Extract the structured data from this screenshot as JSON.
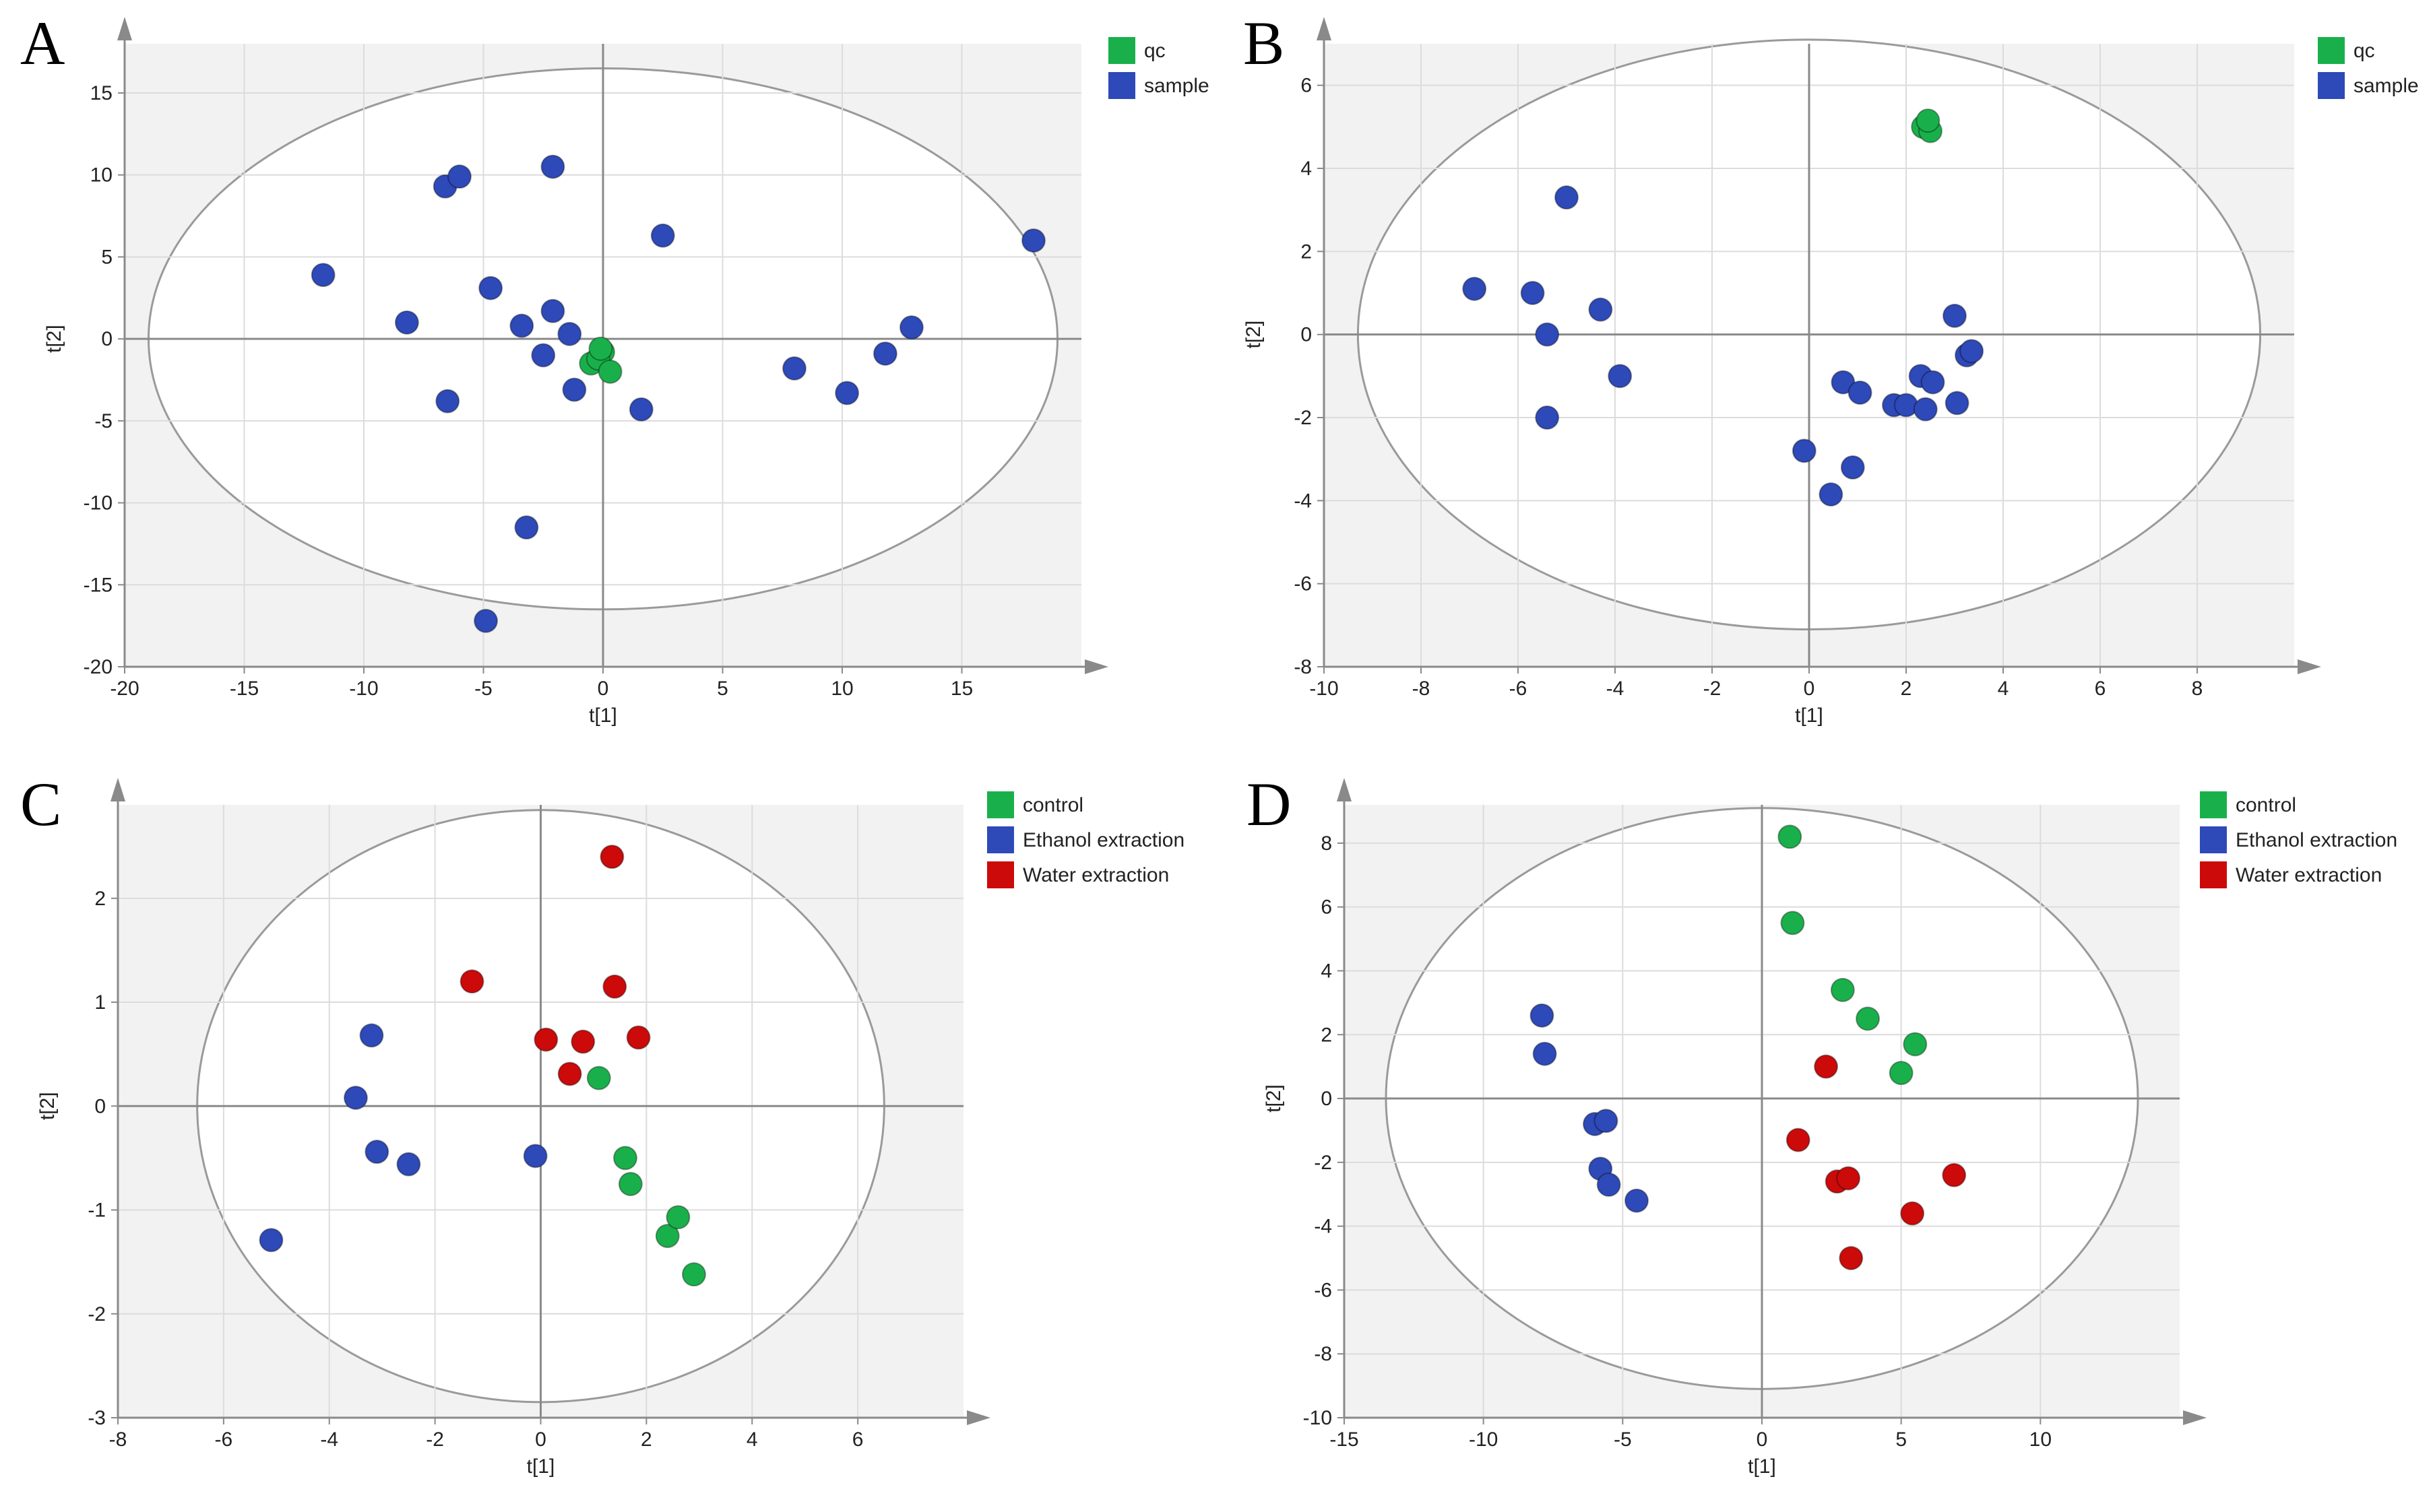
{
  "colors": {
    "plot_bg": "#f2f2f2",
    "ellipse_fill": "#ffffff",
    "ellipse_stroke": "#9a9a9a",
    "grid": "#dcdcdc",
    "axis": "#8a8a8a",
    "green": "#19b04b",
    "blue": "#2e49b8",
    "red": "#cc0a0a"
  },
  "chart_data": [
    {
      "panel": "A",
      "type": "scatter",
      "xlabel": "t[1]",
      "ylabel": "t[2]",
      "xlim": [
        -20,
        20
      ],
      "ylim": [
        -20,
        18
      ],
      "xticks": [
        -20,
        -15,
        -10,
        -5,
        0,
        5,
        10,
        15
      ],
      "yticks": [
        -20,
        -15,
        -10,
        -5,
        0,
        5,
        10,
        15
      ],
      "ellipse": {
        "rx": 19,
        "ry": 16.5
      },
      "grid": true,
      "legend_position": "top-right",
      "series": [
        {
          "name": "qc",
          "color": "green",
          "points": [
            [
              0,
              -0.8
            ],
            [
              -0.5,
              -1.5
            ],
            [
              -0.2,
              -1.2
            ],
            [
              0.3,
              -2.0
            ],
            [
              -0.1,
              -0.6
            ]
          ]
        },
        {
          "name": "sample",
          "color": "blue",
          "points": [
            [
              -11.7,
              3.9
            ],
            [
              -8.2,
              1.0
            ],
            [
              -6.6,
              9.3
            ],
            [
              -6.0,
              9.9
            ],
            [
              -6.5,
              -3.8
            ],
            [
              -4.7,
              3.1
            ],
            [
              -3.4,
              0.8
            ],
            [
              -2.5,
              -1.0
            ],
            [
              -2.1,
              1.7
            ],
            [
              -2.1,
              10.5
            ],
            [
              -1.4,
              0.3
            ],
            [
              -1.2,
              -3.1
            ],
            [
              -3.2,
              -11.5
            ],
            [
              -4.9,
              -17.2
            ],
            [
              1.6,
              -4.3
            ],
            [
              2.5,
              6.3
            ],
            [
              8.0,
              -1.8
            ],
            [
              10.2,
              -3.3
            ],
            [
              11.8,
              -0.9
            ],
            [
              12.9,
              0.7
            ],
            [
              18.0,
              6.0
            ]
          ]
        }
      ]
    },
    {
      "panel": "B",
      "type": "scatter",
      "xlabel": "t[1]",
      "ylabel": "t[2]",
      "xlim": [
        -10,
        10
      ],
      "ylim": [
        -8,
        7
      ],
      "xticks": [
        -10,
        -8,
        -6,
        -4,
        -2,
        0,
        2,
        4,
        6,
        8
      ],
      "yticks": [
        -8,
        -6,
        -4,
        -2,
        0,
        2,
        4,
        6
      ],
      "ellipse": {
        "rx": 9.3,
        "ry": 7.1
      },
      "grid": true,
      "legend_position": "top-right",
      "series": [
        {
          "name": "qc",
          "color": "green",
          "points": [
            [
              2.35,
              5.0
            ],
            [
              2.5,
              4.9
            ],
            [
              2.45,
              5.15
            ]
          ]
        },
        {
          "name": "sample",
          "color": "blue",
          "points": [
            [
              -6.9,
              1.1
            ],
            [
              -5.7,
              1.0
            ],
            [
              -5.4,
              0.0
            ],
            [
              -5.4,
              -2.0
            ],
            [
              -5.0,
              3.3
            ],
            [
              -4.3,
              0.6
            ],
            [
              -3.9,
              -1.0
            ],
            [
              -0.1,
              -2.8
            ],
            [
              0.45,
              -3.85
            ],
            [
              0.7,
              -1.15
            ],
            [
              0.9,
              -3.2
            ],
            [
              1.05,
              -1.4
            ],
            [
              1.75,
              -1.7
            ],
            [
              2.0,
              -1.7
            ],
            [
              2.3,
              -1.0
            ],
            [
              2.4,
              -1.8
            ],
            [
              2.55,
              -1.15
            ],
            [
              3.0,
              0.45
            ],
            [
              3.05,
              -1.65
            ],
            [
              3.25,
              -0.5
            ],
            [
              3.35,
              -0.4
            ]
          ]
        }
      ]
    },
    {
      "panel": "C",
      "type": "scatter",
      "xlabel": "t[1]",
      "ylabel": "t[2]",
      "xlim": [
        -8,
        8
      ],
      "ylim": [
        -3,
        2.9
      ],
      "xticks": [
        -8,
        -6,
        -4,
        -2,
        0,
        2,
        4,
        6
      ],
      "yticks": [
        -3,
        -2,
        -1,
        0,
        1,
        2
      ],
      "ellipse": {
        "rx": 6.5,
        "ry": 2.85
      },
      "grid": true,
      "legend_position": "top-right",
      "series": [
        {
          "name": "control",
          "color": "green",
          "points": [
            [
              1.1,
              0.27
            ],
            [
              1.6,
              -0.5
            ],
            [
              1.7,
              -0.75
            ],
            [
              2.4,
              -1.25
            ],
            [
              2.6,
              -1.07
            ],
            [
              2.9,
              -1.62
            ]
          ]
        },
        {
          "name": "Ethanol extraction",
          "color": "blue",
          "points": [
            [
              -5.1,
              -1.29
            ],
            [
              -3.5,
              0.08
            ],
            [
              -3.2,
              0.68
            ],
            [
              -3.1,
              -0.44
            ],
            [
              -2.5,
              -0.56
            ],
            [
              -0.1,
              -0.48
            ]
          ]
        },
        {
          "name": "Water extraction",
          "color": "red",
          "points": [
            [
              -1.3,
              1.2
            ],
            [
              0.1,
              0.64
            ],
            [
              0.55,
              0.31
            ],
            [
              0.8,
              0.62
            ],
            [
              1.35,
              2.4
            ],
            [
              1.4,
              1.15
            ],
            [
              1.85,
              0.66
            ]
          ]
        }
      ]
    },
    {
      "panel": "D",
      "type": "scatter",
      "xlabel": "t[1]",
      "ylabel": "t[2]",
      "xlim": [
        -15,
        15
      ],
      "ylim": [
        -10,
        9.2
      ],
      "xticks": [
        -15,
        -10,
        -5,
        0,
        5,
        10
      ],
      "yticks": [
        -10,
        -8,
        -6,
        -4,
        -2,
        0,
        2,
        4,
        6,
        8
      ],
      "ellipse": {
        "rx": 13.5,
        "ry": 9.1
      },
      "grid": true,
      "legend_position": "top-right",
      "series": [
        {
          "name": "control",
          "color": "green",
          "points": [
            [
              1.0,
              8.2
            ],
            [
              1.1,
              5.5
            ],
            [
              2.9,
              3.4
            ],
            [
              3.8,
              2.5
            ],
            [
              5.0,
              0.8
            ],
            [
              5.5,
              1.7
            ]
          ]
        },
        {
          "name": "Ethanol extraction",
          "color": "blue",
          "points": [
            [
              -7.9,
              2.6
            ],
            [
              -7.8,
              1.4
            ],
            [
              -6.0,
              -0.8
            ],
            [
              -5.6,
              -0.7
            ],
            [
              -5.8,
              -2.2
            ],
            [
              -5.5,
              -2.7
            ],
            [
              -4.5,
              -3.2
            ]
          ]
        },
        {
          "name": "Water extraction",
          "color": "red",
          "points": [
            [
              1.3,
              -1.3
            ],
            [
              2.3,
              1.0
            ],
            [
              2.7,
              -2.6
            ],
            [
              3.1,
              -2.5
            ],
            [
              3.2,
              -5.0
            ],
            [
              5.4,
              -3.6
            ],
            [
              6.9,
              -2.4
            ]
          ]
        }
      ]
    }
  ]
}
